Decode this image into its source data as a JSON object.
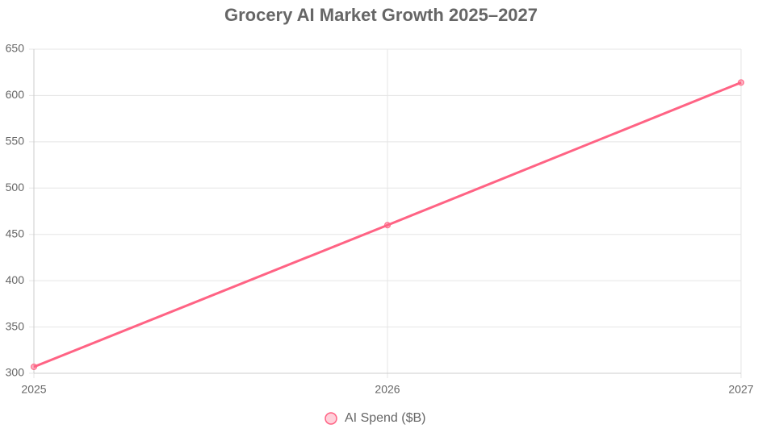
{
  "chart_data": {
    "type": "line",
    "title": "Grocery AI Market Growth 2025–2027",
    "categories": [
      "2025",
      "2026",
      "2027"
    ],
    "series": [
      {
        "name": "AI Spend ($B)",
        "color": "#ff6384",
        "values": [
          307,
          460,
          614
        ]
      }
    ],
    "ylim": [
      300,
      650
    ],
    "yticks": [
      300,
      350,
      400,
      450,
      500,
      550,
      600,
      650
    ],
    "grid": true,
    "legend": "bottom"
  }
}
